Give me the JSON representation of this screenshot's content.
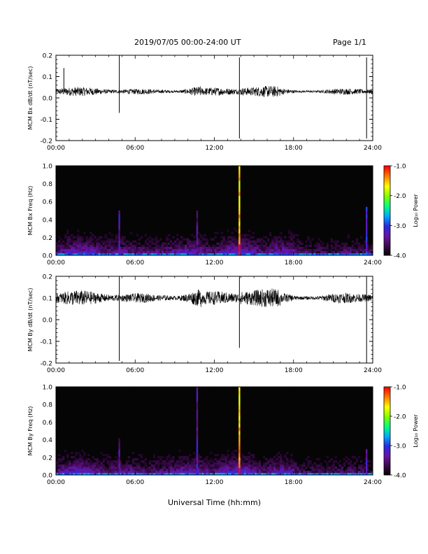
{
  "header": {
    "title": "2019/07/05  00:00-24:00 UT",
    "page": "Page 1/1"
  },
  "colors": {
    "trace": "#000000",
    "spectrogram_background": "#050505",
    "colormap": [
      "#000000",
      "#3b0a4a",
      "#6a14a8",
      "#2a2ae0",
      "#00a8ff",
      "#00ff80",
      "#80ff00",
      "#ffff00",
      "#ff8000",
      "#ff0000"
    ]
  },
  "chart_data": [
    {
      "type": "line",
      "ylabel": "MCM Bx dB/dt (nT/sec)",
      "ylim": [
        -0.2,
        0.2
      ],
      "yticks": [
        "0.2",
        "0.1",
        "0.0",
        "-0.1",
        "-0.2"
      ],
      "xlim": [
        "00:00",
        "24:00"
      ],
      "xticks": [
        "00:00",
        "06:00",
        "12:00",
        "18:00",
        "24:00"
      ],
      "baseline": 0.03,
      "noise_amplitude": 0.012,
      "spikes": [
        {
          "t": "00:36",
          "y": 0.14
        },
        {
          "t": "04:48",
          "y": 0.2
        },
        {
          "t": "04:48",
          "y": -0.07
        },
        {
          "t": "13:54",
          "y": 0.19
        },
        {
          "t": "13:54",
          "y": -0.19
        },
        {
          "t": "23:32",
          "y": 0.19
        },
        {
          "t": "23:32",
          "y": -0.19
        }
      ]
    },
    {
      "type": "heatmap",
      "ylabel": "MCM Bx Freq (Hz)",
      "ylim": [
        0.0,
        1.0
      ],
      "yticks": [
        "1.0",
        "0.8",
        "0.6",
        "0.4",
        "0.2",
        "0.0"
      ],
      "xlim": [
        "00:00",
        "24:00"
      ],
      "xticks": [
        "00:00",
        "06:00",
        "12:00",
        "18:00",
        "24:00"
      ],
      "colorbar": {
        "label": "Log₁₀ Power",
        "range": [
          -4.0,
          -1.0
        ],
        "ticks": [
          "-1.0",
          "-2.0",
          "-3.0",
          "-4.0"
        ]
      },
      "bright_columns": [
        {
          "t": "13:54",
          "max_freq": 1.0,
          "level": -1.6
        },
        {
          "t": "04:48",
          "max_freq": 0.5,
          "level": -3.2
        },
        {
          "t": "23:32",
          "max_freq": 0.55,
          "level": -3.0
        },
        {
          "t": "10:42",
          "max_freq": 0.5,
          "level": -3.4
        }
      ]
    },
    {
      "type": "line",
      "ylabel": "MCM By dB/dt (nT/sec)",
      "ylim": [
        -0.2,
        0.2
      ],
      "yticks": [
        "0.2",
        "0.1",
        "0.0",
        "-0.1",
        "-0.2"
      ],
      "xlim": [
        "00:00",
        "24:00"
      ],
      "xticks": [
        "00:00",
        "06:00",
        "12:00",
        "18:00",
        "24:00"
      ],
      "baseline": 0.1,
      "noise_amplitude": 0.02,
      "spikes": [
        {
          "t": "04:48",
          "y": 0.2
        },
        {
          "t": "04:48",
          "y": -0.19
        },
        {
          "t": "13:54",
          "y": 0.2
        },
        {
          "t": "13:54",
          "y": -0.13
        },
        {
          "t": "23:32",
          "y": 0.2
        },
        {
          "t": "23:32",
          "y": -0.2
        }
      ]
    },
    {
      "type": "heatmap",
      "ylabel": "MCM By Freq (Hz)",
      "ylim": [
        0.0,
        1.0
      ],
      "yticks": [
        "1.0",
        "0.8",
        "0.6",
        "0.4",
        "0.2",
        "0.0"
      ],
      "xlim": [
        "00:00",
        "24:00"
      ],
      "xticks": [
        "00:00",
        "06:00",
        "12:00",
        "18:00",
        "24:00"
      ],
      "xlabel": "Universal Time (hh:mm)",
      "colorbar": {
        "label": "Log₁₀ Power",
        "range": [
          -4.0,
          -1.0
        ],
        "ticks": [
          "-1.0",
          "-2.0",
          "-3.0",
          "-4.0"
        ]
      },
      "bright_columns": [
        {
          "t": "13:54",
          "max_freq": 1.0,
          "level": -1.6
        },
        {
          "t": "10:42",
          "max_freq": 1.0,
          "level": -3.1
        },
        {
          "t": "04:48",
          "max_freq": 0.4,
          "level": -3.3
        },
        {
          "t": "23:32",
          "max_freq": 0.3,
          "level": -3.2
        }
      ]
    }
  ]
}
